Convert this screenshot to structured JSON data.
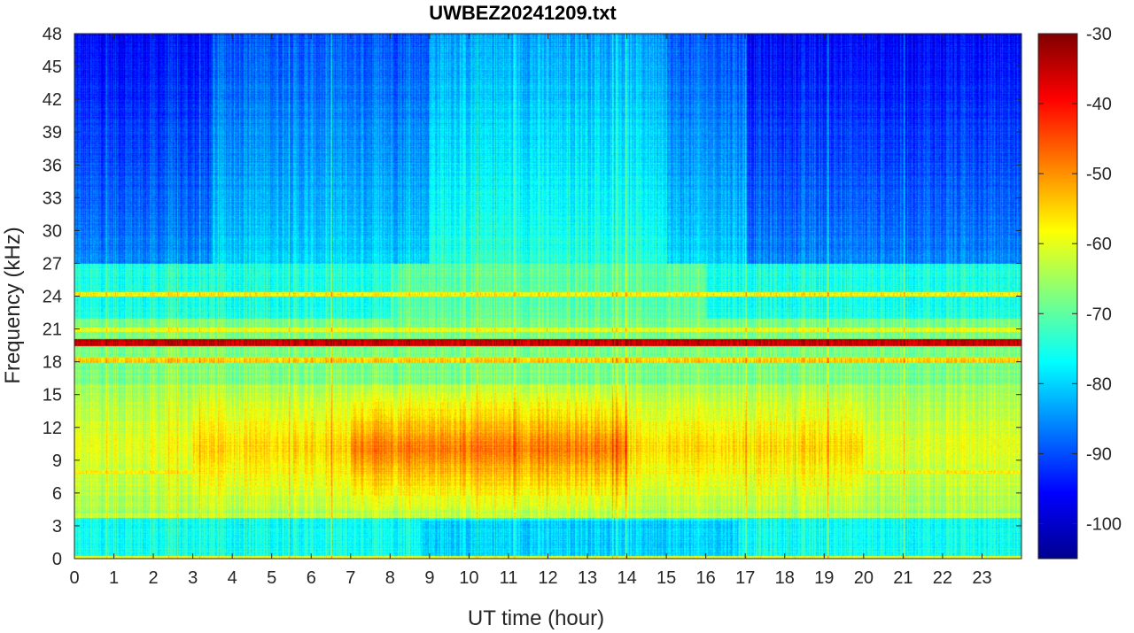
{
  "chart_data": {
    "type": "heatmap",
    "title": "UWBEZ20241209.txt",
    "xlabel": "UT time (hour)",
    "ylabel": "Frequency (kHz)",
    "xlim": [
      0,
      24
    ],
    "ylim": [
      0,
      48
    ],
    "x_ticks": [
      "0",
      "1",
      "2",
      "3",
      "4",
      "5",
      "6",
      "7",
      "8",
      "9",
      "10",
      "11",
      "12",
      "13",
      "14",
      "15",
      "16",
      "17",
      "18",
      "19",
      "20",
      "21",
      "22",
      "23"
    ],
    "y_ticks": [
      "0",
      "3",
      "6",
      "9",
      "12",
      "15",
      "18",
      "21",
      "24",
      "27",
      "30",
      "33",
      "36",
      "39",
      "42",
      "45",
      "48"
    ],
    "colorbar": {
      "range": [
        -105,
        -30
      ],
      "ticks": [
        "-30",
        "-40",
        "-50",
        "-60",
        "-70",
        "-80",
        "-90",
        "-100"
      ],
      "colormap": "jet"
    },
    "features": {
      "strong_band_khz": 19.8,
      "secondary_band_khz": 18.2,
      "hiss_band_khz": [
        4,
        16
      ],
      "hiss_peak_hours": [
        7,
        14
      ],
      "quiet_high_freq_khz": [
        27,
        48
      ]
    }
  }
}
